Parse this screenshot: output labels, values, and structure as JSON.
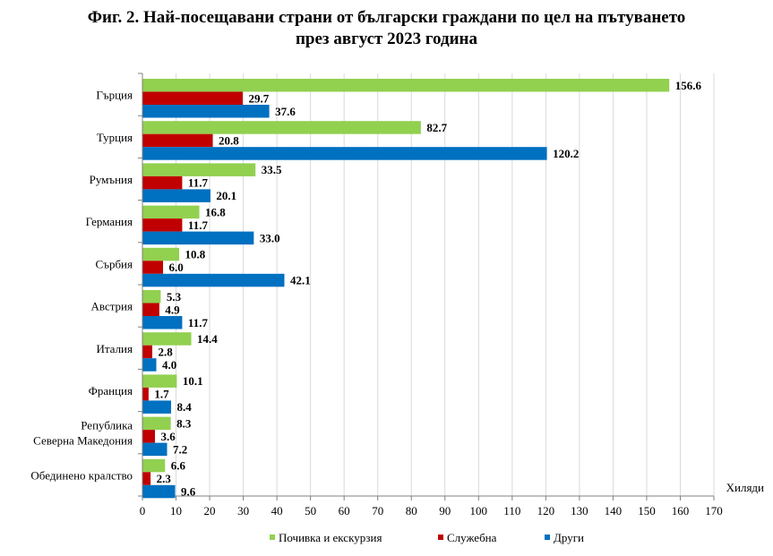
{
  "chart_data": {
    "type": "bar",
    "orientation": "horizontal",
    "title_line1": "Фиг. 2. Най-посещавани страни от български граждани по цел на пътуването",
    "title_line2": "през август 2023 година",
    "unit_label": "Хиляди",
    "categories": [
      "Гърция",
      "Турция",
      "Румъния",
      "Германия",
      "Сърбия",
      "Австрия",
      "Италия",
      "Франция",
      "Република Северна Македония",
      "Обединено кралство"
    ],
    "category_lines": [
      [
        "Гърция"
      ],
      [
        "Турция"
      ],
      [
        "Румъния"
      ],
      [
        "Германия"
      ],
      [
        "Сърбия"
      ],
      [
        "Австрия"
      ],
      [
        "Италия"
      ],
      [
        "Франция"
      ],
      [
        "Република",
        "Северна Македония"
      ],
      [
        "Обединено кралство"
      ]
    ],
    "series": [
      {
        "name": "Почивка и екскурзия",
        "color": "#92D050",
        "values": [
          156.6,
          82.7,
          33.5,
          16.8,
          10.8,
          5.3,
          14.4,
          10.1,
          8.3,
          6.6
        ]
      },
      {
        "name": "Служебна",
        "color": "#C00000",
        "values": [
          29.7,
          20.8,
          11.7,
          11.7,
          6.0,
          4.9,
          2.8,
          1.7,
          3.6,
          2.3
        ]
      },
      {
        "name": "Други",
        "color": "#0070C0",
        "values": [
          37.6,
          120.2,
          20.1,
          33.0,
          42.1,
          11.7,
          4.0,
          8.4,
          7.2,
          9.6
        ]
      }
    ],
    "xlim": [
      0,
      170
    ],
    "x_ticks": [
      0,
      10,
      20,
      30,
      40,
      50,
      60,
      70,
      80,
      90,
      100,
      110,
      120,
      130,
      140,
      150,
      160,
      170
    ],
    "grid": true,
    "legend_position": "bottom"
  }
}
